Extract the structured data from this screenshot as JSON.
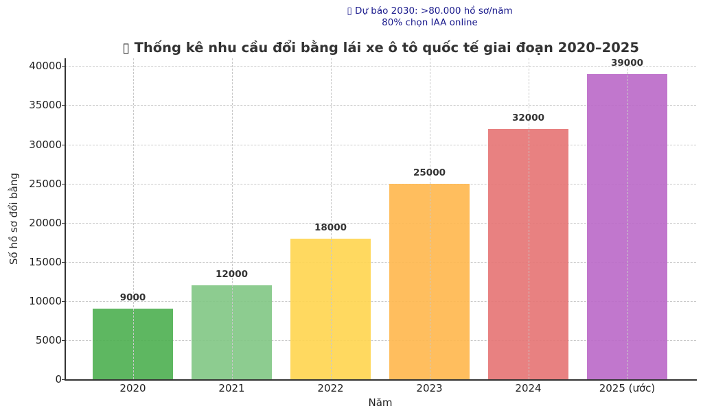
{
  "annotation": {
    "line1": "▯ Dự báo 2030: >80.000 hồ sơ/năm",
    "line2": "80% chọn IAA online",
    "color": "#1a1a8c"
  },
  "chart_data": {
    "type": "bar",
    "title": "▯ Thống kê nhu cầu đổi bằng lái xe ô tô quốc tế giai đoạn 2020–2025",
    "xlabel": "Năm",
    "ylabel": "Số hồ sơ đổi bằng",
    "categories": [
      "2020",
      "2021",
      "2022",
      "2023",
      "2024",
      "2025 (ước)"
    ],
    "values": [
      9000,
      12000,
      18000,
      25000,
      32000,
      39000
    ],
    "data_labels": [
      "9000",
      "12000",
      "18000",
      "25000",
      "32000",
      "39000"
    ],
    "colors": [
      "#4caf50",
      "#81c784",
      "#ffd54f",
      "#ffb74d",
      "#e57373",
      "#ba68c8"
    ],
    "ylim": [
      0,
      41000
    ],
    "yticks": [
      "0",
      "5000",
      "10000",
      "15000",
      "20000",
      "25000",
      "30000",
      "35000",
      "40000"
    ],
    "grid": true,
    "grid_style": "dashed",
    "legend": null
  }
}
